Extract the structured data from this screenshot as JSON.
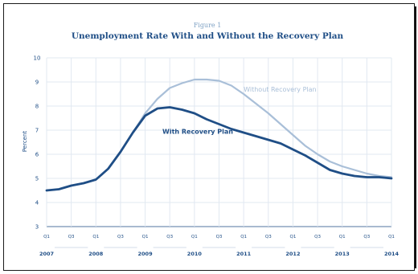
{
  "chart_data": {
    "type": "line",
    "figure_label": "Figure 1",
    "title": "Unemployment Rate With and Without the Recovery Plan",
    "xlabel": "",
    "ylabel": "Percent",
    "ylim": [
      3,
      10
    ],
    "yticks": [
      3,
      4,
      5,
      6,
      7,
      8,
      9,
      10
    ],
    "grid": true,
    "quarter_ticks": [
      "Q1",
      "Q3",
      "Q1",
      "Q3",
      "Q1",
      "Q3",
      "Q1",
      "Q3",
      "Q1",
      "Q3",
      "Q1",
      "Q3",
      "Q1",
      "Q3",
      "Q1"
    ],
    "years": [
      "2007",
      "2008",
      "2009",
      "2010",
      "2011",
      "2012",
      "2013",
      "2014"
    ],
    "x": [
      2007.0,
      2007.25,
      2007.5,
      2007.75,
      2008.0,
      2008.25,
      2008.5,
      2008.75,
      2009.0,
      2009.25,
      2009.5,
      2009.75,
      2010.0,
      2010.25,
      2010.5,
      2010.75,
      2011.0,
      2011.25,
      2011.5,
      2011.75,
      2012.0,
      2012.25,
      2012.5,
      2012.75,
      2013.0,
      2013.25,
      2013.5,
      2013.75,
      2014.0
    ],
    "series": [
      {
        "name": "Without Recovery Plan",
        "color": "#a9bfd8",
        "values": [
          4.5,
          4.55,
          4.7,
          4.8,
          4.95,
          5.4,
          6.1,
          6.9,
          7.7,
          8.3,
          8.75,
          8.95,
          9.1,
          9.1,
          9.05,
          8.85,
          8.5,
          8.1,
          7.7,
          7.25,
          6.8,
          6.35,
          6.0,
          5.7,
          5.5,
          5.35,
          5.2,
          5.1,
          5.05
        ]
      },
      {
        "name": "With Recovery Plan",
        "color": "#1f4e86",
        "values": [
          4.5,
          4.55,
          4.7,
          4.8,
          4.95,
          5.4,
          6.1,
          6.9,
          7.6,
          7.9,
          7.95,
          7.85,
          7.7,
          7.45,
          7.25,
          7.05,
          6.9,
          6.75,
          6.6,
          6.45,
          6.2,
          5.95,
          5.65,
          5.35,
          5.2,
          5.1,
          5.05,
          5.05,
          5.0
        ]
      }
    ],
    "annotations": [
      {
        "text": "Without Recovery Plan",
        "series": 0
      },
      {
        "text": "With Recovery Plan",
        "series": 1
      }
    ]
  }
}
